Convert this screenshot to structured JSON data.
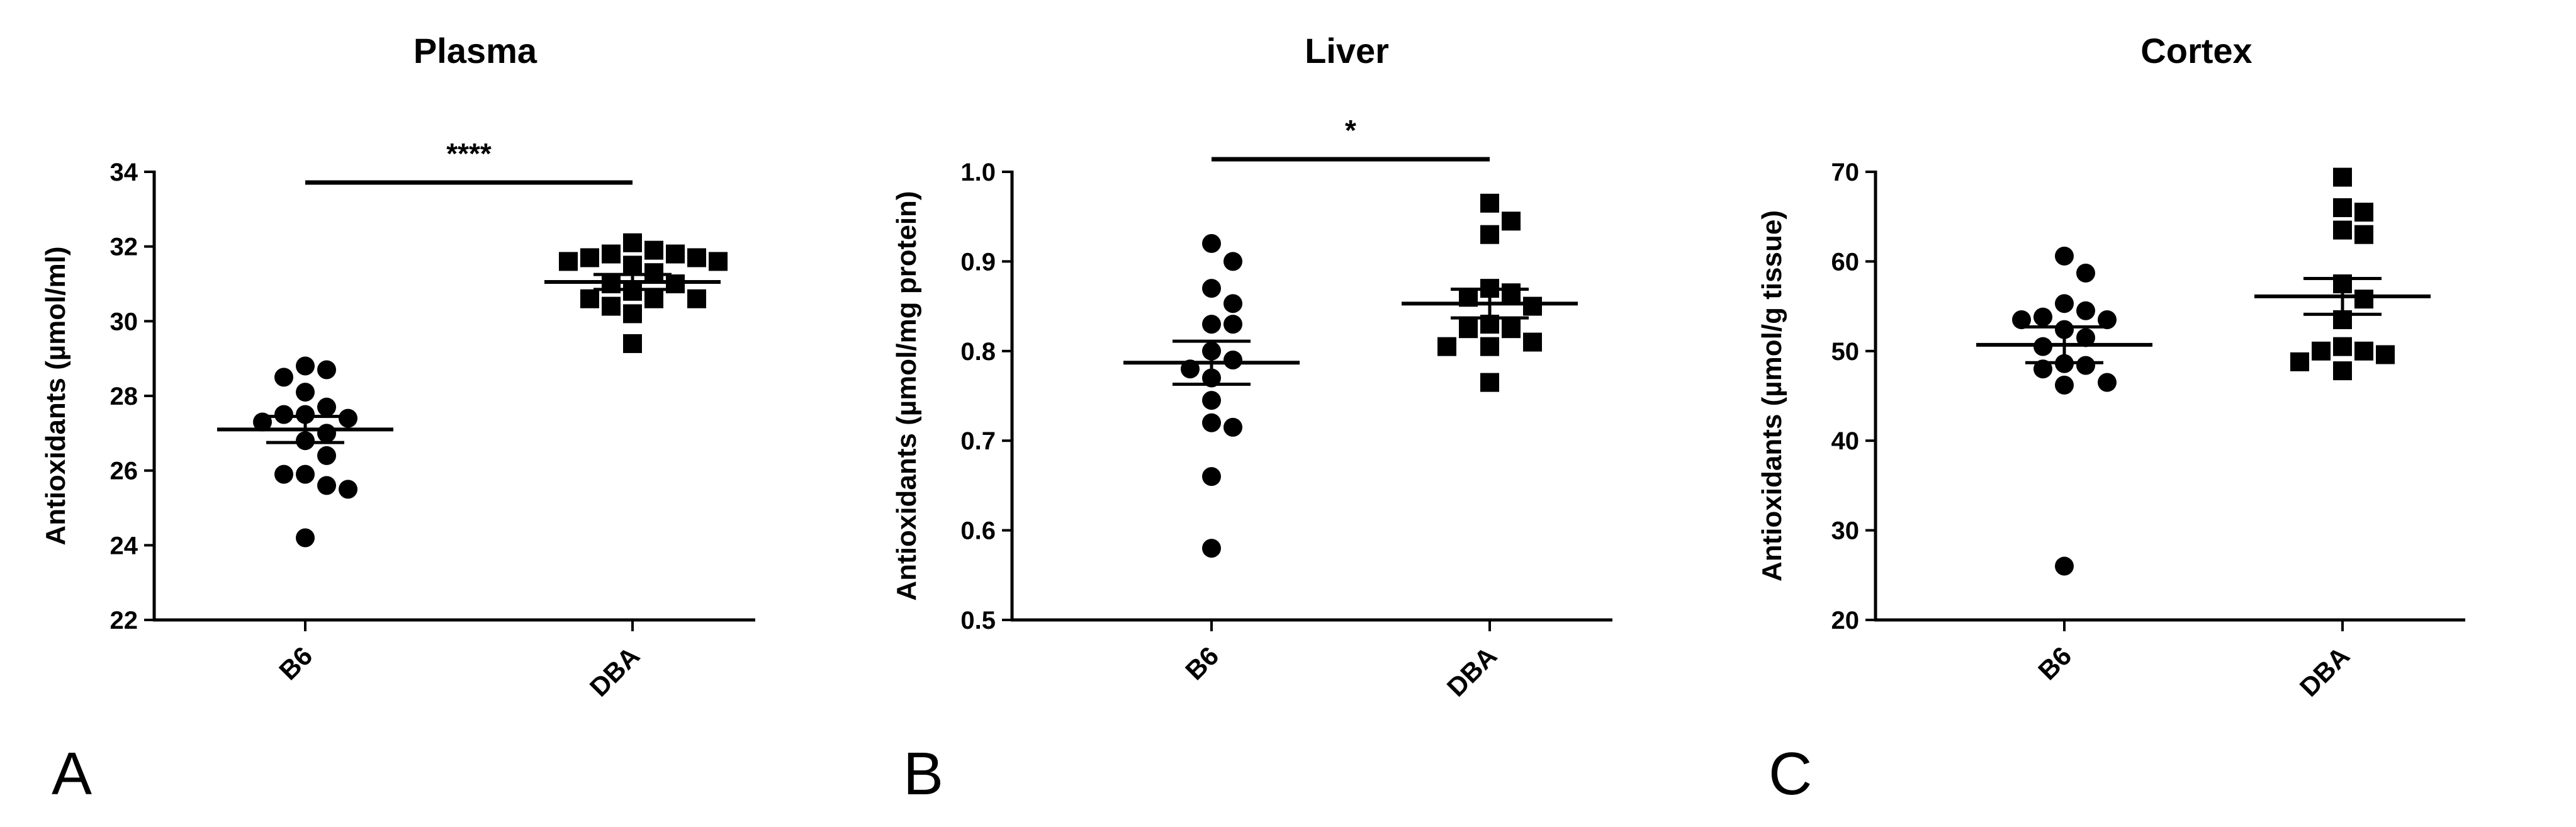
{
  "chart_data": [
    {
      "type": "scatter",
      "panel": "A",
      "title": "Plasma",
      "ylabel": "Antioxidants (µmol/ml)",
      "ylim": [
        22,
        34
      ],
      "yticks": [
        22,
        24,
        26,
        28,
        30,
        32,
        34
      ],
      "categories": [
        "B6",
        "DBA"
      ],
      "significance": "****",
      "series": [
        {
          "category": "B6",
          "marker": "circle",
          "values": [
            28.7,
            28.8,
            28.5,
            27.4,
            27.5,
            27.7,
            28.1,
            27.3,
            27.0,
            27.5,
            26.8,
            26.4,
            25.9,
            25.9,
            25.5,
            25.6,
            24.2
          ],
          "mean": 27.1,
          "sem": 0.35
        },
        {
          "category": "DBA",
          "marker": "square",
          "values": [
            31.9,
            31.7,
            31.6,
            31.5,
            31.7,
            31.6,
            32.1,
            31.8,
            31.8,
            31.3,
            31.0,
            30.6,
            30.6,
            30.8,
            31.0,
            30.2,
            30.4,
            30.6,
            29.4
          ],
          "mean": 31.05,
          "sem": 0.2
        }
      ]
    },
    {
      "type": "scatter",
      "panel": "B",
      "title": "Liver",
      "ylabel": "Antioxidants (µmol/mg protein)",
      "ylim": [
        0.5,
        1.0
      ],
      "yticks": [
        0.5,
        0.6,
        0.7,
        0.8,
        0.9,
        1.0
      ],
      "categories": [
        "B6",
        "DBA"
      ],
      "significance": "*",
      "series": [
        {
          "category": "B6",
          "marker": "circle",
          "values": [
            0.92,
            0.9,
            0.87,
            0.853,
            0.83,
            0.83,
            0.8,
            0.79,
            0.78,
            0.77,
            0.745,
            0.72,
            0.715,
            0.66,
            0.58
          ],
          "mean": 0.787,
          "sem": 0.024
        },
        {
          "category": "DBA",
          "marker": "square",
          "values": [
            0.965,
            0.945,
            0.93,
            0.87,
            0.865,
            0.86,
            0.85,
            0.83,
            0.825,
            0.825,
            0.81,
            0.805,
            0.805,
            0.765
          ],
          "mean": 0.853,
          "sem": 0.016
        }
      ]
    },
    {
      "type": "scatter",
      "panel": "C",
      "title": "Cortex",
      "ylabel": "Antioxidants (µmol/g tissue)",
      "ylim": [
        20,
        70
      ],
      "yticks": [
        20,
        30,
        40,
        50,
        60,
        70
      ],
      "categories": [
        "B6",
        "DBA"
      ],
      "significance": "",
      "series": [
        {
          "category": "B6",
          "marker": "circle",
          "values": [
            60.6,
            58.7,
            55.3,
            54.5,
            53.8,
            53.5,
            53.5,
            52.4,
            51.5,
            50.5,
            48.4,
            48.6,
            48.0,
            46.5,
            46.2,
            26.0
          ],
          "mean": 50.7,
          "sem": 2.0
        },
        {
          "category": "DBA",
          "marker": "square",
          "values": [
            69.4,
            66.0,
            65.5,
            63.5,
            63.0,
            57.5,
            55.8,
            53.5,
            50.5,
            50.0,
            50.0,
            49.6,
            48.8,
            47.8
          ],
          "mean": 56.1,
          "sem": 2.0
        }
      ]
    }
  ]
}
